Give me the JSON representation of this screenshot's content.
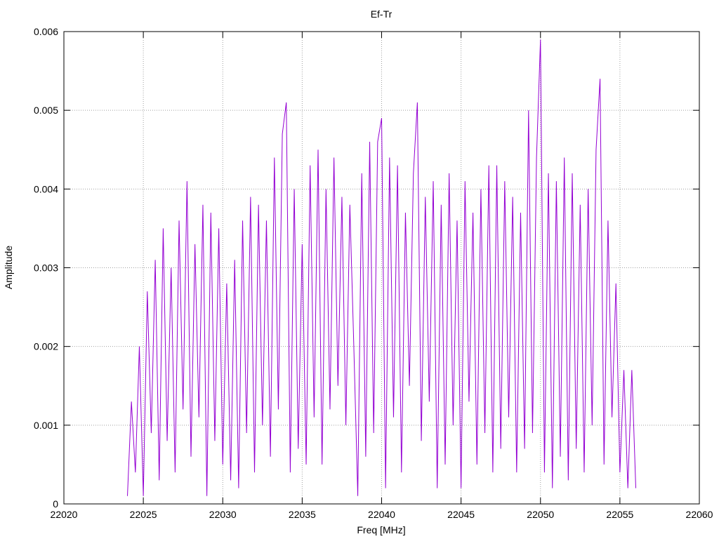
{
  "chart_data": {
    "type": "line",
    "title": "Ef-Tr",
    "x_label": "Freq [MHz]",
    "y_label": "Amplitude",
    "x": [
      22024,
      22024.25,
      22024.5,
      22024.75,
      22025,
      22025.25,
      22025.5,
      22025.75,
      22026,
      22026.25,
      22026.5,
      22026.75,
      22027,
      22027.25,
      22027.5,
      22027.75,
      22028,
      22028.25,
      22028.5,
      22028.75,
      22029,
      22029.25,
      22029.5,
      22029.75,
      22030,
      22030.25,
      22030.5,
      22030.75,
      22031,
      22031.25,
      22031.5,
      22031.75,
      22032,
      22032.25,
      22032.5,
      22032.75,
      22033,
      22033.25,
      22033.5,
      22033.75,
      22034,
      22034.25,
      22034.5,
      22034.75,
      22035,
      22035.25,
      22035.5,
      22035.75,
      22036,
      22036.25,
      22036.5,
      22036.75,
      22037,
      22037.25,
      22037.5,
      22037.75,
      22038,
      22038.25,
      22038.5,
      22038.75,
      22039,
      22039.25,
      22039.5,
      22039.75,
      22040,
      22040.25,
      22040.5,
      22040.75,
      22041,
      22041.25,
      22041.5,
      22041.75,
      22042,
      22042.25,
      22042.5,
      22042.75,
      22043,
      22043.25,
      22043.5,
      22043.75,
      22044,
      22044.25,
      22044.5,
      22044.75,
      22045,
      22045.25,
      22045.5,
      22045.75,
      22046,
      22046.25,
      22046.5,
      22046.75,
      22047,
      22047.25,
      22047.5,
      22047.75,
      22048,
      22048.25,
      22048.5,
      22048.75,
      22049,
      22049.25,
      22049.5,
      22049.75,
      22050,
      22050.25,
      22050.5,
      22050.75,
      22051,
      22051.25,
      22051.5,
      22051.75,
      22052,
      22052.25,
      22052.5,
      22052.75,
      22053,
      22053.25,
      22053.5,
      22053.75,
      22054,
      22054.25,
      22054.5,
      22054.75,
      22055,
      22055.25,
      22055.5,
      22055.75,
      22056
    ],
    "series": [
      {
        "name": "Ef-Tr",
        "color": "#9400d3",
        "values": [
          0.0001,
          0.0013,
          0.0004,
          0.002,
          0.0001,
          0.0027,
          0.0009,
          0.0031,
          0.0003,
          0.0035,
          0.0008,
          0.003,
          0.0004,
          0.0036,
          0.0012,
          0.0041,
          0.0006,
          0.0033,
          0.0011,
          0.0038,
          0.0001,
          0.0037,
          0.0008,
          0.0035,
          0.0005,
          0.0028,
          0.0003,
          0.0031,
          0.0002,
          0.0036,
          0.0009,
          0.0039,
          0.0004,
          0.0038,
          0.001,
          0.0036,
          0.0006,
          0.0044,
          0.0012,
          0.0047,
          0.0051,
          0.0004,
          0.004,
          0.0007,
          0.0033,
          0.0005,
          0.0043,
          0.0011,
          0.0045,
          0.0005,
          0.004,
          0.0012,
          0.0044,
          0.0015,
          0.0039,
          0.001,
          0.0038,
          0.002,
          0.0001,
          0.0042,
          0.0006,
          0.0046,
          0.0009,
          0.0046,
          0.0049,
          0.0002,
          0.0044,
          0.0011,
          0.0043,
          0.0004,
          0.0037,
          0.0015,
          0.0042,
          0.0051,
          0.0008,
          0.0039,
          0.0013,
          0.0041,
          0.0002,
          0.0038,
          0.0005,
          0.0042,
          0.001,
          0.0036,
          0.0002,
          0.0041,
          0.0013,
          0.0037,
          0.0005,
          0.004,
          0.0009,
          0.0043,
          0.0004,
          0.0043,
          0.0007,
          0.0041,
          0.0011,
          0.0039,
          0.0004,
          0.0037,
          0.0007,
          0.005,
          0.0009,
          0.0044,
          0.0059,
          0.0004,
          0.0042,
          0.0002,
          0.0041,
          0.0006,
          0.0044,
          0.0003,
          0.0042,
          0.0007,
          0.0038,
          0.0004,
          0.004,
          0.001,
          0.0045,
          0.0054,
          0.0005,
          0.0036,
          0.0011,
          0.0028,
          0.0004,
          0.0017,
          0.0002,
          0.0017,
          0.0002
        ]
      }
    ],
    "xlim": [
      22020,
      22060
    ],
    "xticks": [
      22020,
      22025,
      22030,
      22035,
      22040,
      22045,
      22050,
      22055,
      22060
    ],
    "ylim": [
      0,
      0.006
    ],
    "yticks": [
      0,
      0.001,
      0.002,
      0.003,
      0.004,
      0.005,
      0.006
    ],
    "grid": true
  }
}
